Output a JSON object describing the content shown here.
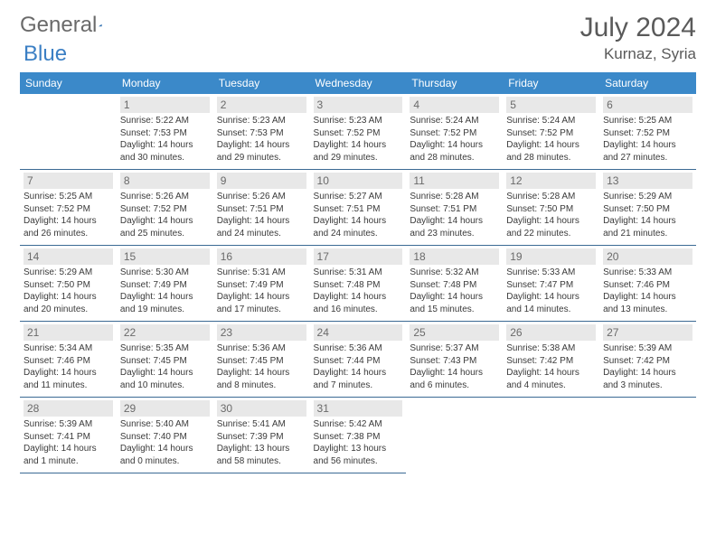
{
  "brand": {
    "part1": "General",
    "part2": "Blue"
  },
  "title": "July 2024",
  "location": "Kurnaz, Syria",
  "colors": {
    "header_bg": "#3b89c9",
    "header_fg": "#ffffff",
    "daynum_bg": "#e8e8e8",
    "border": "#3b6a94",
    "text": "#333333",
    "brand_gray": "#6a6a6a",
    "brand_blue": "#3b7fc4"
  },
  "weekdays": [
    "Sunday",
    "Monday",
    "Tuesday",
    "Wednesday",
    "Thursday",
    "Friday",
    "Saturday"
  ],
  "weeks": [
    [
      {
        "empty": true
      },
      {
        "day": "1",
        "sunrise": "Sunrise: 5:22 AM",
        "sunset": "Sunset: 7:53 PM",
        "daylight1": "Daylight: 14 hours",
        "daylight2": "and 30 minutes."
      },
      {
        "day": "2",
        "sunrise": "Sunrise: 5:23 AM",
        "sunset": "Sunset: 7:53 PM",
        "daylight1": "Daylight: 14 hours",
        "daylight2": "and 29 minutes."
      },
      {
        "day": "3",
        "sunrise": "Sunrise: 5:23 AM",
        "sunset": "Sunset: 7:52 PM",
        "daylight1": "Daylight: 14 hours",
        "daylight2": "and 29 minutes."
      },
      {
        "day": "4",
        "sunrise": "Sunrise: 5:24 AM",
        "sunset": "Sunset: 7:52 PM",
        "daylight1": "Daylight: 14 hours",
        "daylight2": "and 28 minutes."
      },
      {
        "day": "5",
        "sunrise": "Sunrise: 5:24 AM",
        "sunset": "Sunset: 7:52 PM",
        "daylight1": "Daylight: 14 hours",
        "daylight2": "and 28 minutes."
      },
      {
        "day": "6",
        "sunrise": "Sunrise: 5:25 AM",
        "sunset": "Sunset: 7:52 PM",
        "daylight1": "Daylight: 14 hours",
        "daylight2": "and 27 minutes."
      }
    ],
    [
      {
        "day": "7",
        "sunrise": "Sunrise: 5:25 AM",
        "sunset": "Sunset: 7:52 PM",
        "daylight1": "Daylight: 14 hours",
        "daylight2": "and 26 minutes."
      },
      {
        "day": "8",
        "sunrise": "Sunrise: 5:26 AM",
        "sunset": "Sunset: 7:52 PM",
        "daylight1": "Daylight: 14 hours",
        "daylight2": "and 25 minutes."
      },
      {
        "day": "9",
        "sunrise": "Sunrise: 5:26 AM",
        "sunset": "Sunset: 7:51 PM",
        "daylight1": "Daylight: 14 hours",
        "daylight2": "and 24 minutes."
      },
      {
        "day": "10",
        "sunrise": "Sunrise: 5:27 AM",
        "sunset": "Sunset: 7:51 PM",
        "daylight1": "Daylight: 14 hours",
        "daylight2": "and 24 minutes."
      },
      {
        "day": "11",
        "sunrise": "Sunrise: 5:28 AM",
        "sunset": "Sunset: 7:51 PM",
        "daylight1": "Daylight: 14 hours",
        "daylight2": "and 23 minutes."
      },
      {
        "day": "12",
        "sunrise": "Sunrise: 5:28 AM",
        "sunset": "Sunset: 7:50 PM",
        "daylight1": "Daylight: 14 hours",
        "daylight2": "and 22 minutes."
      },
      {
        "day": "13",
        "sunrise": "Sunrise: 5:29 AM",
        "sunset": "Sunset: 7:50 PM",
        "daylight1": "Daylight: 14 hours",
        "daylight2": "and 21 minutes."
      }
    ],
    [
      {
        "day": "14",
        "sunrise": "Sunrise: 5:29 AM",
        "sunset": "Sunset: 7:50 PM",
        "daylight1": "Daylight: 14 hours",
        "daylight2": "and 20 minutes."
      },
      {
        "day": "15",
        "sunrise": "Sunrise: 5:30 AM",
        "sunset": "Sunset: 7:49 PM",
        "daylight1": "Daylight: 14 hours",
        "daylight2": "and 19 minutes."
      },
      {
        "day": "16",
        "sunrise": "Sunrise: 5:31 AM",
        "sunset": "Sunset: 7:49 PM",
        "daylight1": "Daylight: 14 hours",
        "daylight2": "and 17 minutes."
      },
      {
        "day": "17",
        "sunrise": "Sunrise: 5:31 AM",
        "sunset": "Sunset: 7:48 PM",
        "daylight1": "Daylight: 14 hours",
        "daylight2": "and 16 minutes."
      },
      {
        "day": "18",
        "sunrise": "Sunrise: 5:32 AM",
        "sunset": "Sunset: 7:48 PM",
        "daylight1": "Daylight: 14 hours",
        "daylight2": "and 15 minutes."
      },
      {
        "day": "19",
        "sunrise": "Sunrise: 5:33 AM",
        "sunset": "Sunset: 7:47 PM",
        "daylight1": "Daylight: 14 hours",
        "daylight2": "and 14 minutes."
      },
      {
        "day": "20",
        "sunrise": "Sunrise: 5:33 AM",
        "sunset": "Sunset: 7:46 PM",
        "daylight1": "Daylight: 14 hours",
        "daylight2": "and 13 minutes."
      }
    ],
    [
      {
        "day": "21",
        "sunrise": "Sunrise: 5:34 AM",
        "sunset": "Sunset: 7:46 PM",
        "daylight1": "Daylight: 14 hours",
        "daylight2": "and 11 minutes."
      },
      {
        "day": "22",
        "sunrise": "Sunrise: 5:35 AM",
        "sunset": "Sunset: 7:45 PM",
        "daylight1": "Daylight: 14 hours",
        "daylight2": "and 10 minutes."
      },
      {
        "day": "23",
        "sunrise": "Sunrise: 5:36 AM",
        "sunset": "Sunset: 7:45 PM",
        "daylight1": "Daylight: 14 hours",
        "daylight2": "and 8 minutes."
      },
      {
        "day": "24",
        "sunrise": "Sunrise: 5:36 AM",
        "sunset": "Sunset: 7:44 PM",
        "daylight1": "Daylight: 14 hours",
        "daylight2": "and 7 minutes."
      },
      {
        "day": "25",
        "sunrise": "Sunrise: 5:37 AM",
        "sunset": "Sunset: 7:43 PM",
        "daylight1": "Daylight: 14 hours",
        "daylight2": "and 6 minutes."
      },
      {
        "day": "26",
        "sunrise": "Sunrise: 5:38 AM",
        "sunset": "Sunset: 7:42 PM",
        "daylight1": "Daylight: 14 hours",
        "daylight2": "and 4 minutes."
      },
      {
        "day": "27",
        "sunrise": "Sunrise: 5:39 AM",
        "sunset": "Sunset: 7:42 PM",
        "daylight1": "Daylight: 14 hours",
        "daylight2": "and 3 minutes."
      }
    ],
    [
      {
        "day": "28",
        "sunrise": "Sunrise: 5:39 AM",
        "sunset": "Sunset: 7:41 PM",
        "daylight1": "Daylight: 14 hours",
        "daylight2": "and 1 minute."
      },
      {
        "day": "29",
        "sunrise": "Sunrise: 5:40 AM",
        "sunset": "Sunset: 7:40 PM",
        "daylight1": "Daylight: 14 hours",
        "daylight2": "and 0 minutes."
      },
      {
        "day": "30",
        "sunrise": "Sunrise: 5:41 AM",
        "sunset": "Sunset: 7:39 PM",
        "daylight1": "Daylight: 13 hours",
        "daylight2": "and 58 minutes."
      },
      {
        "day": "31",
        "sunrise": "Sunrise: 5:42 AM",
        "sunset": "Sunset: 7:38 PM",
        "daylight1": "Daylight: 13 hours",
        "daylight2": "and 56 minutes."
      },
      {
        "empty": true
      },
      {
        "empty": true
      },
      {
        "empty": true
      }
    ]
  ]
}
